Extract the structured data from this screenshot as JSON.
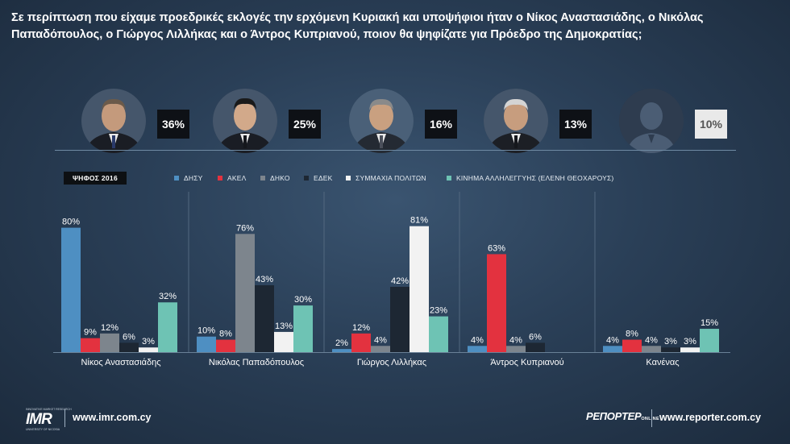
{
  "question": "Σε περίπτωση που είχαμε προεδρικές εκλογές την ερχόμενη Κυριακή και υποψήφιοι ήταν ο Νίκος Αναστασιάδης, ο Νικόλας Παπαδόπουλος, ο Γιώργος Λιλλήκας και ο Άντρος Κυπριανού, ποιον θα ψηφίζατε για Πρόεδρο της Δημοκρατίας;",
  "candidates": [
    {
      "name": "Νίκος Αναστασιάδης",
      "percent": "36%"
    },
    {
      "name": "Νικόλας Παπαδόπουλος",
      "percent": "25%"
    },
    {
      "name": "Γιώργος Λιλλήκας",
      "percent": "16%"
    },
    {
      "name": "Άντρος Κυπριανού",
      "percent": "13%"
    },
    {
      "name": "Κανένας",
      "percent": "10%"
    }
  ],
  "badge": "ΨΗΦΟΣ 2016",
  "legend": [
    {
      "label": "ΔΗΣΥ",
      "color": "#4e8fc2"
    },
    {
      "label": "ΑΚΕΛ",
      "color": "#e3323f"
    },
    {
      "label": "ΔΗΚΟ",
      "color": "#7d858d"
    },
    {
      "label": "ΕΔΕΚ",
      "color": "#1d2733"
    },
    {
      "label": "ΣΥΜΜΑΧΙΑ ΠΟΛΙΤΩΝ",
      "color": "#f2f2f2"
    },
    {
      "label": "ΚΙΝΗΜΑ ΑΛΛΗΛΕΓΓΥΗΣ (ΕΛΕΝΗ ΘΕΟΧΑΡΟΥΣ)",
      "color": "#6ec3b4"
    }
  ],
  "chart_data": {
    "type": "bar",
    "title": "ΨΗΦΟΣ 2016",
    "categories": [
      "Νίκος Αναστασιάδης",
      "Νικόλας Παπαδόπουλος",
      "Γιώργος Λιλλήκας",
      "Άντρος Κυπριανού",
      "Κανένας"
    ],
    "series": [
      {
        "name": "ΔΗΣΥ",
        "values": [
          80,
          10,
          2,
          4,
          4
        ]
      },
      {
        "name": "ΑΚΕΛ",
        "values": [
          9,
          8,
          12,
          63,
          8
        ]
      },
      {
        "name": "ΔΗΚΟ",
        "values": [
          12,
          76,
          4,
          4,
          4
        ]
      },
      {
        "name": "ΕΔΕΚ",
        "values": [
          6,
          43,
          42,
          6,
          3
        ]
      },
      {
        "name": "ΣΥΜΜΑΧΙΑ ΠΟΛΙΤΩΝ",
        "values": [
          3,
          13,
          81,
          null,
          3
        ]
      },
      {
        "name": "ΚΙΝΗΜΑ ΑΛΛΗΛΕΓΓΥΗΣ (ΕΛΕΝΗ ΘΕΟΧΑΡΟΥΣ)",
        "values": [
          32,
          30,
          23,
          null,
          15
        ]
      }
    ],
    "value_suffix": "%",
    "ylim": [
      0,
      100
    ],
    "xlabel": "",
    "ylabel": "",
    "grid": true
  },
  "footer": {
    "imr_logo_text": "IMR",
    "imr_small_top": "INNOVATIVE MARKET RESEARCH",
    "imr_small_bottom": "UNIVERSITY OF NICOSIA",
    "left_url": "www.imr.com.cy",
    "reporter_logo": "ΡΕΠΟΡΤΕΡ",
    "reporter_online": "ONLINE",
    "right_url": "www.reporter.com.cy"
  }
}
